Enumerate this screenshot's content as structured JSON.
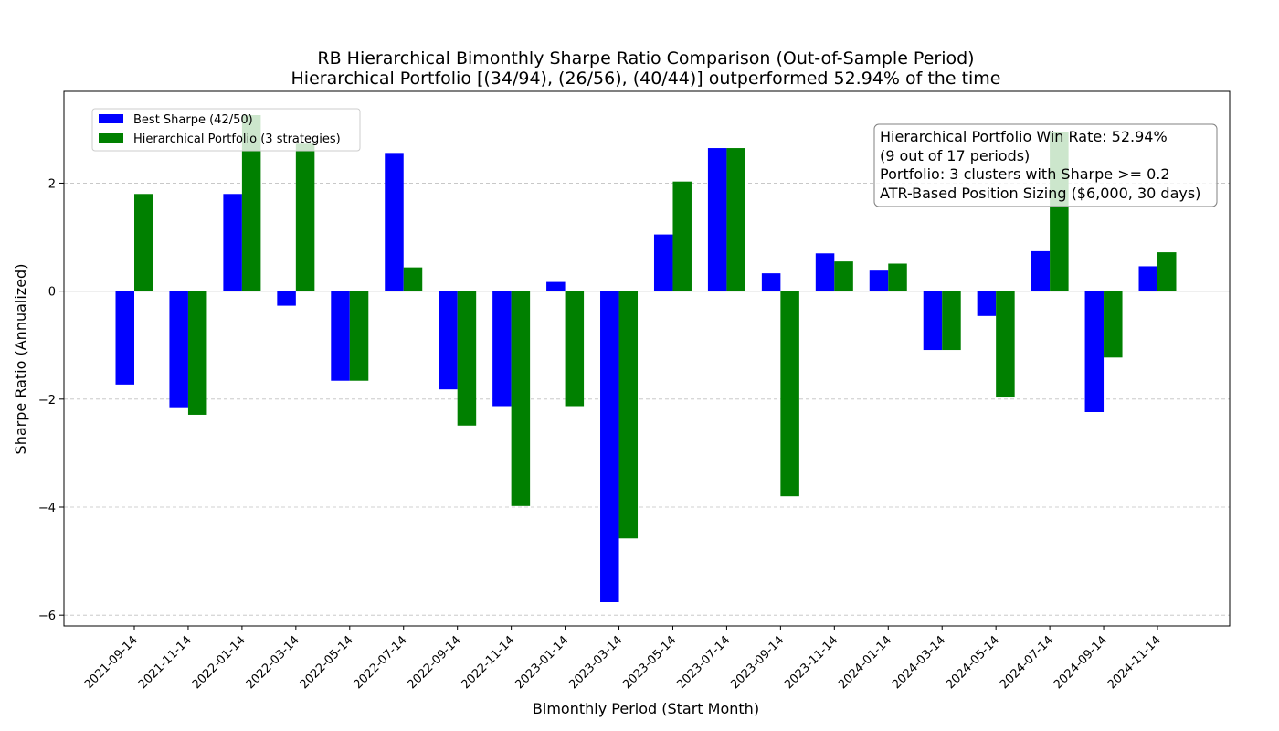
{
  "chart_data": {
    "type": "bar",
    "title_line1": "RB Hierarchical Bimonthly Sharpe Ratio Comparison (Out-of-Sample Period)",
    "title_line2": "Hierarchical Portfolio [(34/94), (26/56), (40/44)] outperformed 52.94% of the time",
    "xlabel": "Bimonthly Period (Start Month)",
    "ylabel": "Sharpe Ratio (Annualized)",
    "ylim": [
      -6.2,
      3.7
    ],
    "yticks": [
      -6,
      -4,
      -2,
      0,
      2
    ],
    "ytick_labels": [
      "−6",
      "−4",
      "−2",
      "0",
      "2"
    ],
    "grid": "y-dashed",
    "legend_placement": "top-left",
    "categories": [
      "2021-09-14",
      "2021-11-14",
      "2022-01-14",
      "2022-03-14",
      "2022-05-14",
      "2022-07-14",
      "2022-09-14",
      "2022-11-14",
      "2023-01-14",
      "2023-03-14",
      "2023-05-14",
      "2023-07-14",
      "2023-09-14",
      "2023-11-14",
      "2024-01-14",
      "2024-03-14",
      "2024-05-14",
      "2024-07-14",
      "2024-09-14",
      "2024-11-14"
    ],
    "series": [
      {
        "name": "Best Sharpe (42/50)",
        "color": "#0000ff",
        "values": [
          -1.73,
          -2.15,
          1.8,
          -0.27,
          -1.66,
          2.56,
          -1.82,
          -2.13,
          0.17,
          -5.76,
          1.05,
          2.65,
          0.33,
          0.7,
          0.38,
          -1.09,
          -0.46,
          0.74,
          -2.24,
          0.46
        ]
      },
      {
        "name": "Hierarchical Portfolio (3 strategies)",
        "color": "#008000",
        "values": [
          1.8,
          -2.29,
          3.26,
          2.73,
          -1.66,
          0.44,
          -2.49,
          -3.98,
          -2.13,
          -4.58,
          2.03,
          2.65,
          -3.8,
          0.55,
          0.51,
          -1.09,
          -1.97,
          2.95,
          -1.23,
          0.72
        ]
      }
    ],
    "annotation": [
      "Hierarchical Portfolio Win Rate: 52.94%",
      "(9 out of 17 periods)",
      "Portfolio: 3 clusters with Sharpe >= 0.2",
      "ATR-Based Position Sizing ($6,000, 30 days)"
    ]
  }
}
